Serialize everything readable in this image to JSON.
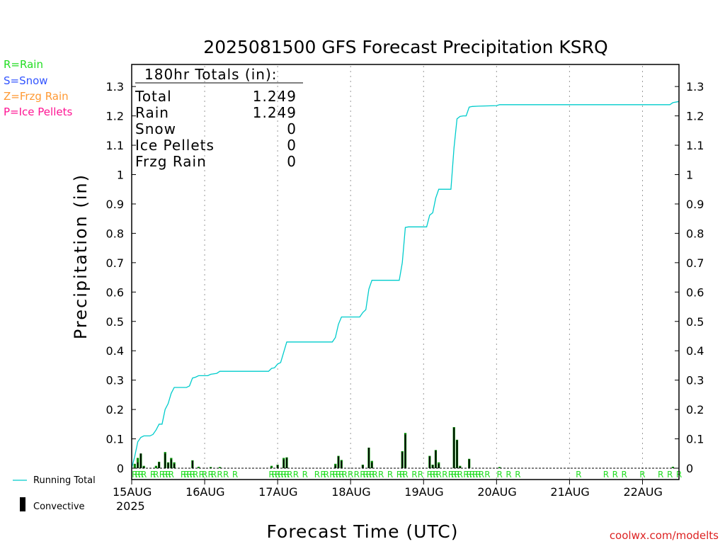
{
  "title": "2025081500 GFS Forecast Precipitation KSRQ",
  "legend": {
    "rain": {
      "label": "R=Rain",
      "color": "#22dd22"
    },
    "snow": {
      "label": "S=Snow",
      "color": "#3355ff"
    },
    "frzg": {
      "label": "Z=Frzg Rain",
      "color": "#ff9933"
    },
    "ice": {
      "label": "P=Ice Pellets",
      "color": "#ff1493"
    },
    "running_total": "Running Total",
    "convective": "Convective"
  },
  "totals": {
    "header": "180hr Totals (in):",
    "rows": [
      {
        "label": "Total",
        "value": "1.249"
      },
      {
        "label": "Rain",
        "value": "1.249"
      },
      {
        "label": "Snow",
        "value": "0"
      },
      {
        "label": "Ice Pellets",
        "value": "0"
      },
      {
        "label": "Frzg Rain",
        "value": "0"
      }
    ]
  },
  "credit": "coolwx.com/modelts",
  "colors": {
    "running_total": "#00cccc",
    "precip_bar": "#008800",
    "convective": "#000000",
    "rain_mark": "#22dd22"
  },
  "chart_data": {
    "type": "bar",
    "ylabel": "Precipitation (in)",
    "xlabel": "Forecast Time (UTC)",
    "ylim": [
      0,
      1.35
    ],
    "xlim_hours": [
      0,
      180
    ],
    "y_ticks": [
      "0",
      "0.1",
      "0.2",
      "0.3",
      "0.4",
      "0.5",
      "0.6",
      "0.7",
      "0.8",
      "0.9",
      "1",
      "1.1",
      "1.2",
      "1.3"
    ],
    "x_ticks": [
      {
        "hour": 0,
        "label": "15AUG",
        "sublabel": "2025"
      },
      {
        "hour": 24,
        "label": "16AUG"
      },
      {
        "hour": 48,
        "label": "17AUG"
      },
      {
        "hour": 72,
        "label": "18AUG"
      },
      {
        "hour": 96,
        "label": "19AUG"
      },
      {
        "hour": 120,
        "label": "20AUG"
      },
      {
        "hour": 144,
        "label": "21AUG"
      },
      {
        "hour": 168,
        "label": "22AUG"
      }
    ],
    "grid": "vertical dotted",
    "running_total": [
      [
        0,
        0
      ],
      [
        1,
        0.04
      ],
      [
        2,
        0.09
      ],
      [
        3,
        0.105
      ],
      [
        4,
        0.11
      ],
      [
        6,
        0.11
      ],
      [
        7,
        0.115
      ],
      [
        8,
        0.13
      ],
      [
        9,
        0.15
      ],
      [
        10,
        0.15
      ],
      [
        11,
        0.2
      ],
      [
        12,
        0.22
      ],
      [
        13,
        0.255
      ],
      [
        14,
        0.275
      ],
      [
        18,
        0.275
      ],
      [
        19,
        0.28
      ],
      [
        20,
        0.307
      ],
      [
        21,
        0.31
      ],
      [
        22,
        0.315
      ],
      [
        25,
        0.315
      ],
      [
        26,
        0.32
      ],
      [
        28,
        0.323
      ],
      [
        29,
        0.33
      ],
      [
        45,
        0.33
      ],
      [
        46,
        0.34
      ],
      [
        47,
        0.342
      ],
      [
        48,
        0.355
      ],
      [
        49,
        0.36
      ],
      [
        50,
        0.395
      ],
      [
        51,
        0.43
      ],
      [
        66,
        0.43
      ],
      [
        67,
        0.445
      ],
      [
        68,
        0.49
      ],
      [
        69,
        0.515
      ],
      [
        75,
        0.515
      ],
      [
        76,
        0.53
      ],
      [
        77,
        0.54
      ],
      [
        78,
        0.61
      ],
      [
        79,
        0.64
      ],
      [
        88,
        0.64
      ],
      [
        89,
        0.7
      ],
      [
        90,
        0.82
      ],
      [
        91,
        0.822
      ],
      [
        97,
        0.822
      ],
      [
        98,
        0.862
      ],
      [
        99,
        0.87
      ],
      [
        100,
        0.92
      ],
      [
        101,
        0.95
      ],
      [
        105,
        0.95
      ],
      [
        106,
        1.09
      ],
      [
        107,
        1.19
      ],
      [
        108,
        1.198
      ],
      [
        109,
        1.2
      ],
      [
        110,
        1.2
      ],
      [
        111,
        1.23
      ],
      [
        112,
        1.232
      ],
      [
        114,
        1.233
      ],
      [
        120,
        1.235
      ],
      [
        121,
        1.238
      ],
      [
        177,
        1.238
      ],
      [
        178,
        1.245
      ],
      [
        180,
        1.249
      ]
    ],
    "bars": [
      {
        "hour": 1,
        "precip": 0.015,
        "convective": 0.0
      },
      {
        "hour": 2,
        "precip": 0.035,
        "convective": 0.02
      },
      {
        "hour": 3,
        "precip": 0.05,
        "convective": 0.05
      },
      {
        "hour": 4,
        "precip": 0.008,
        "convective": 0.005
      },
      {
        "hour": 8,
        "precip": 0.008,
        "convective": 0.0
      },
      {
        "hour": 9,
        "precip": 0.022,
        "convective": 0.02
      },
      {
        "hour": 11,
        "precip": 0.055,
        "convective": 0.05
      },
      {
        "hour": 12,
        "precip": 0.02,
        "convective": 0.018
      },
      {
        "hour": 13,
        "precip": 0.035,
        "convective": 0.03
      },
      {
        "hour": 14,
        "precip": 0.02,
        "convective": 0.015
      },
      {
        "hour": 20,
        "precip": 0.027,
        "convective": 0.025
      },
      {
        "hour": 22,
        "precip": 0.005,
        "convective": 0.0
      },
      {
        "hour": 26,
        "precip": 0.004,
        "convective": 0.0
      },
      {
        "hour": 29,
        "precip": 0.004,
        "convective": 0.0
      },
      {
        "hour": 46,
        "precip": 0.008,
        "convective": 0.0
      },
      {
        "hour": 48,
        "precip": 0.012,
        "convective": 0.01
      },
      {
        "hour": 50,
        "precip": 0.035,
        "convective": 0.03
      },
      {
        "hour": 51,
        "precip": 0.037,
        "convective": 0.035
      },
      {
        "hour": 67,
        "precip": 0.015,
        "convective": 0.01
      },
      {
        "hour": 68,
        "precip": 0.042,
        "convective": 0.04
      },
      {
        "hour": 69,
        "precip": 0.028,
        "convective": 0.025
      },
      {
        "hour": 76,
        "precip": 0.012,
        "convective": 0.01
      },
      {
        "hour": 78,
        "precip": 0.07,
        "convective": 0.07
      },
      {
        "hour": 79,
        "precip": 0.025,
        "convective": 0.02
      },
      {
        "hour": 89,
        "precip": 0.058,
        "convective": 0.055
      },
      {
        "hour": 90,
        "precip": 0.12,
        "convective": 0.115
      },
      {
        "hour": 98,
        "precip": 0.042,
        "convective": 0.04
      },
      {
        "hour": 99,
        "precip": 0.012,
        "convective": 0.01
      },
      {
        "hour": 100,
        "precip": 0.062,
        "convective": 0.06
      },
      {
        "hour": 101,
        "precip": 0.02,
        "convective": 0.015
      },
      {
        "hour": 106,
        "precip": 0.14,
        "convective": 0.138
      },
      {
        "hour": 107,
        "precip": 0.097,
        "convective": 0.095
      },
      {
        "hour": 108,
        "precip": 0.008,
        "convective": 0.005
      },
      {
        "hour": 111,
        "precip": 0.032,
        "convective": 0.03
      },
      {
        "hour": 121,
        "precip": 0.004,
        "convective": 0.0
      },
      {
        "hour": 178,
        "precip": 0.005,
        "convective": 0.0
      }
    ],
    "ptype_marks": [
      {
        "hour": 1,
        "type": "R"
      },
      {
        "hour": 2,
        "type": "R"
      },
      {
        "hour": 3,
        "type": "R"
      },
      {
        "hour": 4,
        "type": "R"
      },
      {
        "hour": 7,
        "type": "R"
      },
      {
        "hour": 8,
        "type": "R"
      },
      {
        "hour": 10,
        "type": "R"
      },
      {
        "hour": 11,
        "type": "R"
      },
      {
        "hour": 12,
        "type": "R"
      },
      {
        "hour": 13,
        "type": "R"
      },
      {
        "hour": 17,
        "type": "R"
      },
      {
        "hour": 18,
        "type": "R"
      },
      {
        "hour": 19,
        "type": "R"
      },
      {
        "hour": 20,
        "type": "R"
      },
      {
        "hour": 21,
        "type": "R"
      },
      {
        "hour": 23,
        "type": "R"
      },
      {
        "hour": 24,
        "type": "R"
      },
      {
        "hour": 26,
        "type": "R"
      },
      {
        "hour": 27,
        "type": "R"
      },
      {
        "hour": 29,
        "type": "R"
      },
      {
        "hour": 31,
        "type": "R"
      },
      {
        "hour": 34,
        "type": "R"
      },
      {
        "hour": 46,
        "type": "R"
      },
      {
        "hour": 47,
        "type": "R"
      },
      {
        "hour": 48,
        "type": "R"
      },
      {
        "hour": 49,
        "type": "R"
      },
      {
        "hour": 50,
        "type": "R"
      },
      {
        "hour": 51,
        "type": "R"
      },
      {
        "hour": 52,
        "type": "R"
      },
      {
        "hour": 54,
        "type": "R"
      },
      {
        "hour": 57,
        "type": "R"
      },
      {
        "hour": 61,
        "type": "R"
      },
      {
        "hour": 63,
        "type": "R"
      },
      {
        "hour": 64,
        "type": "R"
      },
      {
        "hour": 66,
        "type": "R"
      },
      {
        "hour": 67,
        "type": "R"
      },
      {
        "hour": 68,
        "type": "R"
      },
      {
        "hour": 69,
        "type": "R"
      },
      {
        "hour": 70,
        "type": "R"
      },
      {
        "hour": 72,
        "type": "R"
      },
      {
        "hour": 74,
        "type": "R"
      },
      {
        "hour": 76,
        "type": "R"
      },
      {
        "hour": 77,
        "type": "R"
      },
      {
        "hour": 78,
        "type": "R"
      },
      {
        "hour": 79,
        "type": "R"
      },
      {
        "hour": 80,
        "type": "R"
      },
      {
        "hour": 82,
        "type": "R"
      },
      {
        "hour": 85,
        "type": "R"
      },
      {
        "hour": 88,
        "type": "R"
      },
      {
        "hour": 89,
        "type": "R"
      },
      {
        "hour": 90,
        "type": "R"
      },
      {
        "hour": 93,
        "type": "R"
      },
      {
        "hour": 95,
        "type": "R"
      },
      {
        "hour": 98,
        "type": "R"
      },
      {
        "hour": 99,
        "type": "R"
      },
      {
        "hour": 100,
        "type": "R"
      },
      {
        "hour": 101,
        "type": "R"
      },
      {
        "hour": 103,
        "type": "R"
      },
      {
        "hour": 105,
        "type": "R"
      },
      {
        "hour": 106,
        "type": "R"
      },
      {
        "hour": 107,
        "type": "R"
      },
      {
        "hour": 108,
        "type": "R"
      },
      {
        "hour": 110,
        "type": "R"
      },
      {
        "hour": 111,
        "type": "R"
      },
      {
        "hour": 112,
        "type": "R"
      },
      {
        "hour": 113,
        "type": "R"
      },
      {
        "hour": 114,
        "type": "R"
      },
      {
        "hour": 115,
        "type": "R"
      },
      {
        "hour": 117,
        "type": "R"
      },
      {
        "hour": 121,
        "type": "R"
      },
      {
        "hour": 124,
        "type": "R"
      },
      {
        "hour": 127,
        "type": "R"
      },
      {
        "hour": 147,
        "type": "R"
      },
      {
        "hour": 156,
        "type": "R"
      },
      {
        "hour": 159,
        "type": "R"
      },
      {
        "hour": 162,
        "type": "R"
      },
      {
        "hour": 168,
        "type": "R"
      },
      {
        "hour": 174,
        "type": "R"
      },
      {
        "hour": 177,
        "type": "R"
      },
      {
        "hour": 180,
        "type": "R"
      }
    ]
  }
}
